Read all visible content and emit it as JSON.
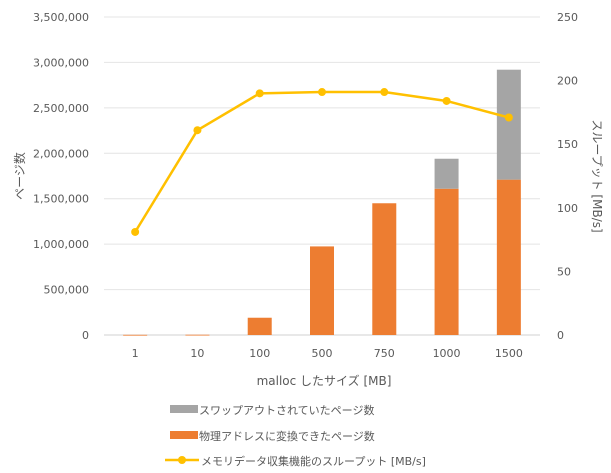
{
  "chart_data": {
    "type": "bar",
    "categories": [
      "1",
      "10",
      "100",
      "500",
      "750",
      "1000",
      "1500"
    ],
    "series": [
      {
        "name": "物理アドレスに変換できたページ数",
        "type": "bar",
        "axis": "left",
        "color": "#ED7D31",
        "values": [
          2000,
          3000,
          190000,
          975000,
          1450000,
          1610000,
          1710000
        ]
      },
      {
        "name": "スワップアウトされていたページ数",
        "type": "bar",
        "axis": "left",
        "color": "#A5A5A5",
        "values": [
          0,
          0,
          0,
          0,
          0,
          330000,
          1210000
        ]
      },
      {
        "name": "メモリデータ収集機能のスループット [MB/s]",
        "type": "line",
        "axis": "right",
        "color": "#FFC000",
        "values": [
          81,
          161,
          190,
          191,
          191,
          184,
          171
        ]
      }
    ],
    "xlabel": "malloc したサイズ [MB]",
    "ylabel": "ページ数",
    "y2label": "スループット [MB/s]",
    "ylim": [
      0,
      3500000
    ],
    "y2lim": [
      0,
      250
    ],
    "yticks": [
      "0",
      "500,000",
      "1,000,000",
      "1,500,000",
      "2,000,000",
      "2,500,000",
      "3,000,000",
      "3,500,000"
    ],
    "y2ticks": [
      "0",
      "50",
      "100",
      "150",
      "200",
      "250"
    ],
    "grid": true,
    "legend_position": "bottom",
    "legend_order": [
      "スワップアウトされていたページ数",
      "物理アドレスに変換できたページ数",
      "メモリデータ収集機能のスループット [MB/s]"
    ]
  }
}
